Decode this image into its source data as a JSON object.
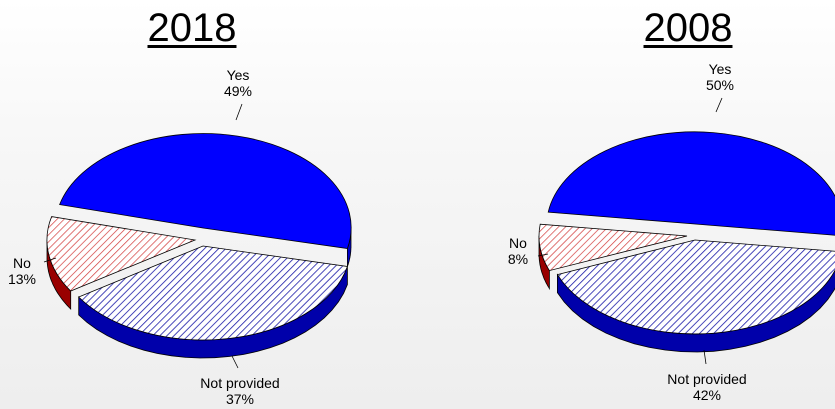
{
  "chart_data": [
    {
      "type": "pie",
      "title": "2018",
      "categories": [
        "Yes",
        "Not provided",
        "No"
      ],
      "values": [
        49,
        37,
        13
      ],
      "value_labels": [
        "49%",
        "37%",
        "13%"
      ],
      "colors": {
        "Yes": "#0000ff",
        "Not provided": "#0000aa",
        "No": "#cc0000"
      },
      "style": "3d-exploded",
      "legend": "none"
    },
    {
      "type": "pie",
      "title": "2008",
      "categories": [
        "Yes",
        "Not provided",
        "No"
      ],
      "values": [
        50,
        42,
        8
      ],
      "value_labels": [
        "50%",
        "42%",
        "8%"
      ],
      "colors": {
        "Yes": "#0000ff",
        "Not provided": "#0000aa",
        "No": "#cc0000"
      },
      "style": "3d-exploded",
      "legend": "none"
    }
  ]
}
